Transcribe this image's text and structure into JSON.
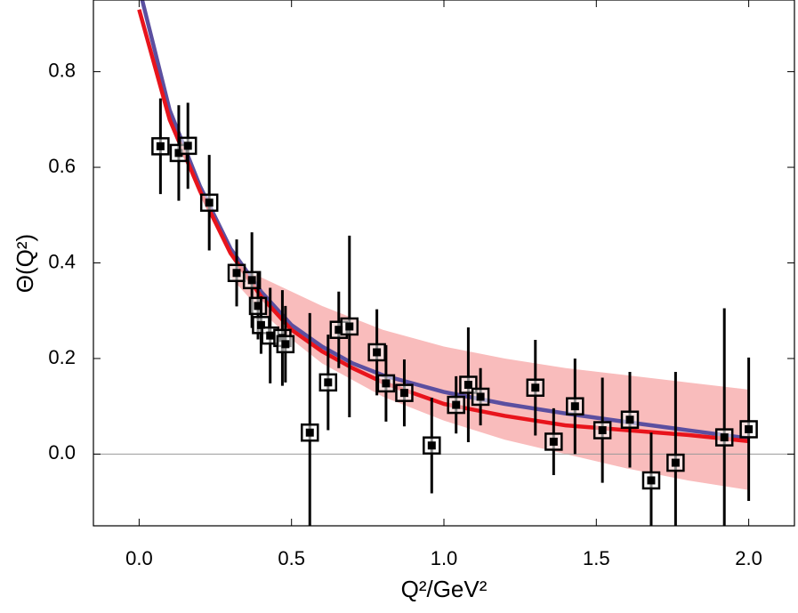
{
  "chart_data": {
    "type": "scatter",
    "xlabel": "Q²/GeV²",
    "ylabel": "Θ(Q²)",
    "xlim": [
      -0.15,
      2.15
    ],
    "ylim": [
      -0.15,
      0.95
    ],
    "xticks": [
      {
        "value": 0,
        "label": "0.0"
      },
      {
        "value": 0.5,
        "label": "0.5"
      },
      {
        "value": 1,
        "label": "1.0"
      },
      {
        "value": 1.5,
        "label": "1.5"
      },
      {
        "value": 2,
        "label": "2.0"
      }
    ],
    "yticks": [
      {
        "value": 0,
        "label": "0.0"
      },
      {
        "value": 0.2,
        "label": "0.2"
      },
      {
        "value": 0.4,
        "label": "0.4"
      },
      {
        "value": 0.6,
        "label": "0.6"
      },
      {
        "value": 0.8,
        "label": "0.8"
      }
    ],
    "zero_line": true,
    "band": {
      "color": "#f9bcbc",
      "x": [
        0.3,
        0.4,
        0.5,
        0.6,
        0.8,
        1.0,
        1.2,
        1.4,
        1.6,
        1.8,
        2.0
      ],
      "upper": [
        0.4,
        0.37,
        0.34,
        0.31,
        0.26,
        0.225,
        0.2,
        0.18,
        0.165,
        0.15,
        0.135
      ],
      "lower": [
        0.37,
        0.3,
        0.24,
        0.19,
        0.12,
        0.07,
        0.03,
        0.0,
        -0.03,
        -0.055,
        -0.075
      ]
    },
    "lines": [
      {
        "color": "#5b4fa0",
        "x": [
          0.01,
          0.1,
          0.2,
          0.3,
          0.4,
          0.5,
          0.6,
          0.7,
          0.8,
          1.0,
          1.2,
          1.4,
          1.6,
          1.8,
          2.0
        ],
        "values": [
          0.95,
          0.72,
          0.56,
          0.43,
          0.34,
          0.27,
          0.225,
          0.19,
          0.165,
          0.13,
          0.105,
          0.085,
          0.067,
          0.05,
          0.033
        ]
      },
      {
        "color": "#e8141c",
        "x": [
          0,
          0.1,
          0.2,
          0.3,
          0.4,
          0.5,
          0.6,
          0.7,
          0.8,
          1.0,
          1.2,
          1.4,
          1.6,
          1.8,
          2.0
        ],
        "values": [
          0.93,
          0.7,
          0.55,
          0.42,
          0.33,
          0.26,
          0.215,
          0.18,
          0.15,
          0.105,
          0.08,
          0.06,
          0.05,
          0.04,
          0.027
        ]
      }
    ],
    "series": [
      {
        "color": "#000000",
        "x": [
          0.07,
          0.13,
          0.16,
          0.23,
          0.32,
          0.37,
          0.39,
          0.4,
          0.43,
          0.47,
          0.48,
          0.56,
          0.62,
          0.655,
          0.69,
          0.78,
          0.81,
          0.87,
          0.96,
          1.04,
          1.08,
          1.12,
          1.3,
          1.36,
          1.43,
          1.52,
          1.61,
          1.68,
          1.76,
          1.92,
          2.0
        ],
        "values": [
          0.644,
          0.63,
          0.645,
          0.526,
          0.379,
          0.364,
          0.31,
          0.27,
          0.248,
          0.243,
          0.23,
          0.045,
          0.15,
          0.26,
          0.267,
          0.213,
          0.148,
          0.128,
          0.018,
          0.103,
          0.145,
          0.12,
          0.139,
          0.026,
          0.1,
          0.05,
          0.072,
          -0.055,
          -0.018,
          0.035,
          0.052
        ],
        "errors": [
          0.1,
          0.1,
          0.09,
          0.1,
          0.07,
          0.1,
          0.07,
          0.06,
          0.1,
          0.1,
          0.08,
          0.25,
          0.1,
          0.08,
          0.19,
          0.09,
          0.08,
          0.07,
          0.1,
          0.06,
          0.12,
          0.06,
          0.1,
          0.07,
          0.1,
          0.11,
          0.1,
          0.1,
          0.19,
          0.27,
          0.15
        ]
      }
    ]
  }
}
